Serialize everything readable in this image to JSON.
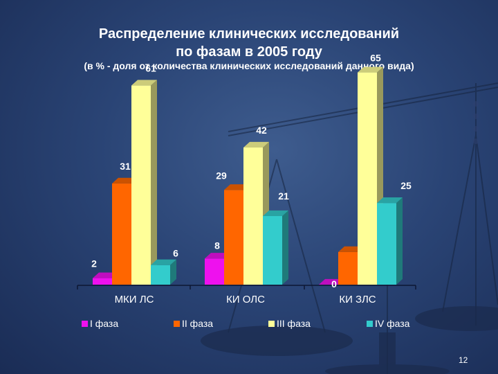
{
  "title_line1": "Распределение клинических исследований",
  "title_line2": "по фазам в 2005 году",
  "subtitle": "(в % - доля от количества клинических исследований данного вида)",
  "page_number": "12",
  "chart_data": {
    "type": "bar",
    "title": "Распределение клинических исследований по фазам в 2005 году",
    "xlabel": "",
    "ylabel": "",
    "ylim": [
      0,
      70
    ],
    "grid": false,
    "legend_position": "bottom",
    "categories": [
      "МКИ ЛС",
      "КИ ОЛС",
      "КИ ЗЛС"
    ],
    "series": [
      {
        "name": "I фаза",
        "values": [
          2,
          8,
          0
        ],
        "color": "#ee11ee"
      },
      {
        "name": "II фаза",
        "values": [
          31,
          29,
          10
        ],
        "color": "#ff6600"
      },
      {
        "name": "III фаза",
        "values": [
          61,
          42,
          65
        ],
        "color": "#ffff99"
      },
      {
        "name": "IV фаза",
        "values": [
          6,
          21,
          25
        ],
        "color": "#33cccc"
      }
    ]
  }
}
